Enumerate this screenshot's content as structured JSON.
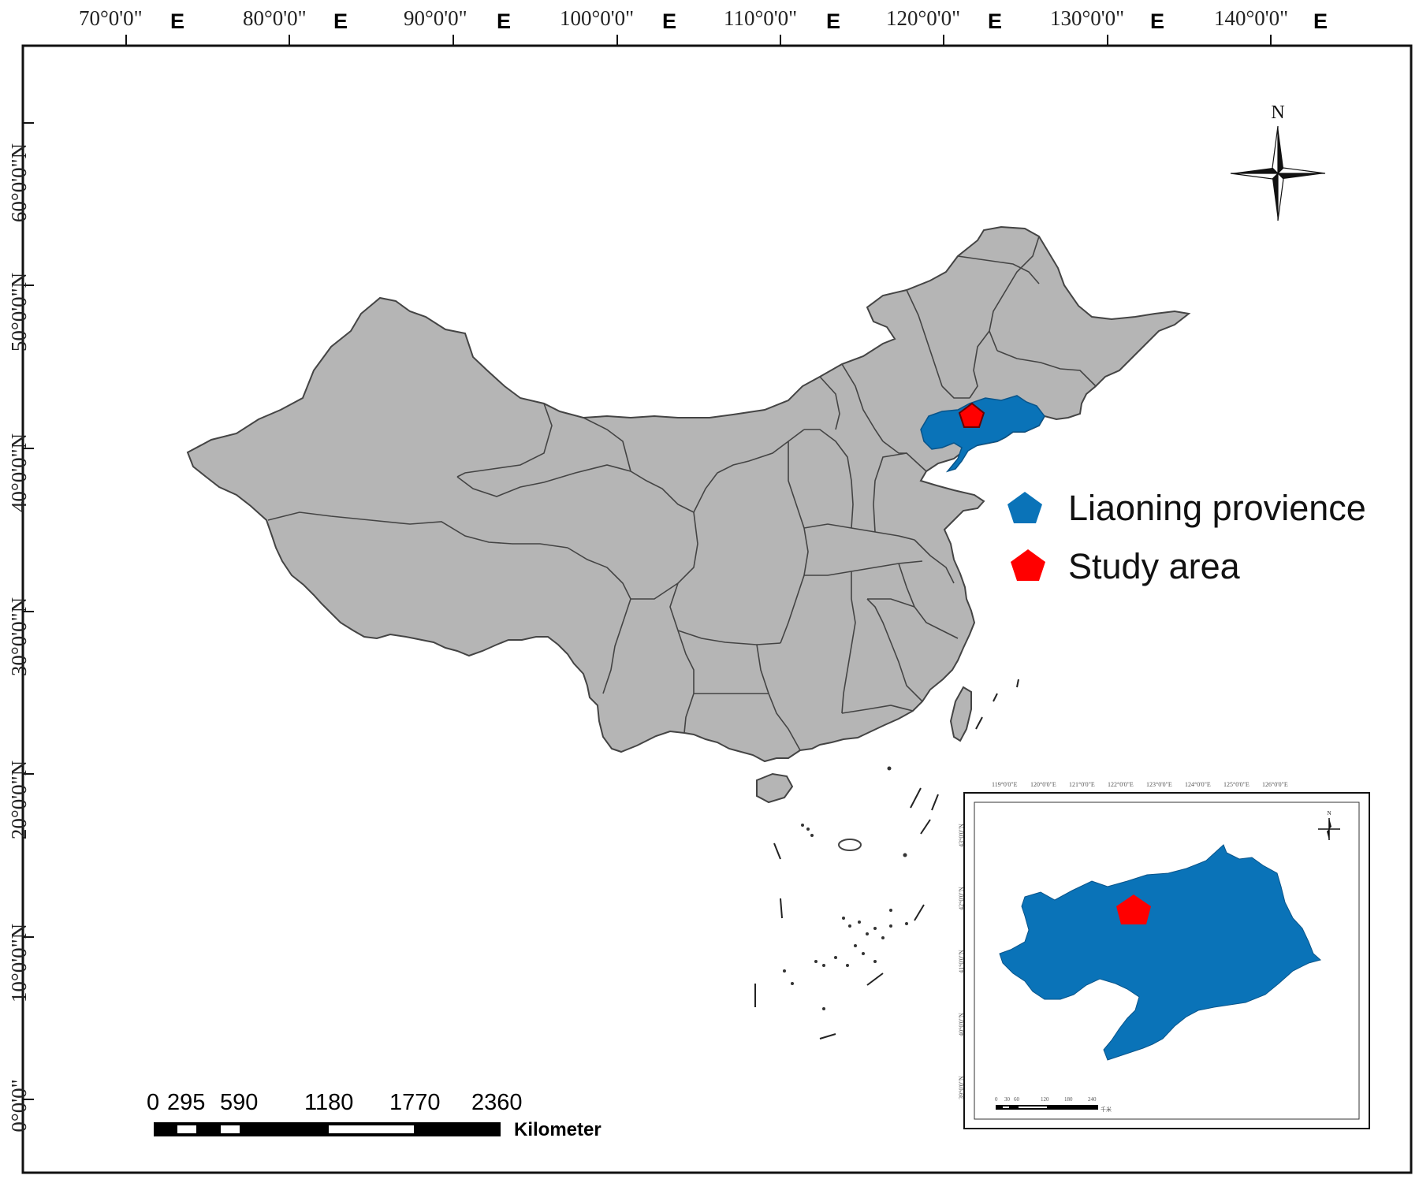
{
  "map": {
    "lon_labels": [
      "70°0'0\"",
      "80°0'0\"",
      "90°0'0\"",
      "100°0'0\"",
      "110°0'0\"",
      "120°0'0\"",
      "130°0'0\"",
      "140°0'0\""
    ],
    "lon_suffix": "E",
    "lat_labels": [
      "60°0'0\"N",
      "50°0'0\"N",
      "40°0'0\"N",
      "30°0'0\"N",
      "20°0'0\"N",
      "10°0'0\"N",
      "0°0'0\""
    ],
    "north_label": "N",
    "colors": {
      "land": "#b5b5b5",
      "province": "#0a73b8",
      "study_area": "#ff0000",
      "border": "#444444"
    }
  },
  "legend": {
    "items": [
      {
        "label": "Liaoning provience",
        "color": "#0a73b8",
        "icon": "pentagon-blue"
      },
      {
        "label": "Study area",
        "color": "#ff0000",
        "icon": "pentagon-red"
      }
    ]
  },
  "scale_bar": {
    "ticks": [
      "0",
      "295",
      "590",
      "1180",
      "1770",
      "2360"
    ],
    "unit": "Kilometer"
  },
  "inset": {
    "lon_ticks": [
      "119°0'0\"E",
      "120°0'0\"E",
      "121°0'0\"E",
      "122°0'0\"E",
      "123°0'0\"E",
      "124°0'0\"E",
      "125°0'0\"E",
      "126°0'0\"E"
    ],
    "lat_ticks": [
      "43°0'0\"N",
      "42°0'0\"N",
      "41°0'0\"N",
      "40°0'0\"N",
      "39°0'0\"N"
    ],
    "scale_ticks": [
      "0",
      "30",
      "60",
      "120",
      "180",
      "240"
    ],
    "scale_unit": "千米",
    "north_label": "N"
  }
}
